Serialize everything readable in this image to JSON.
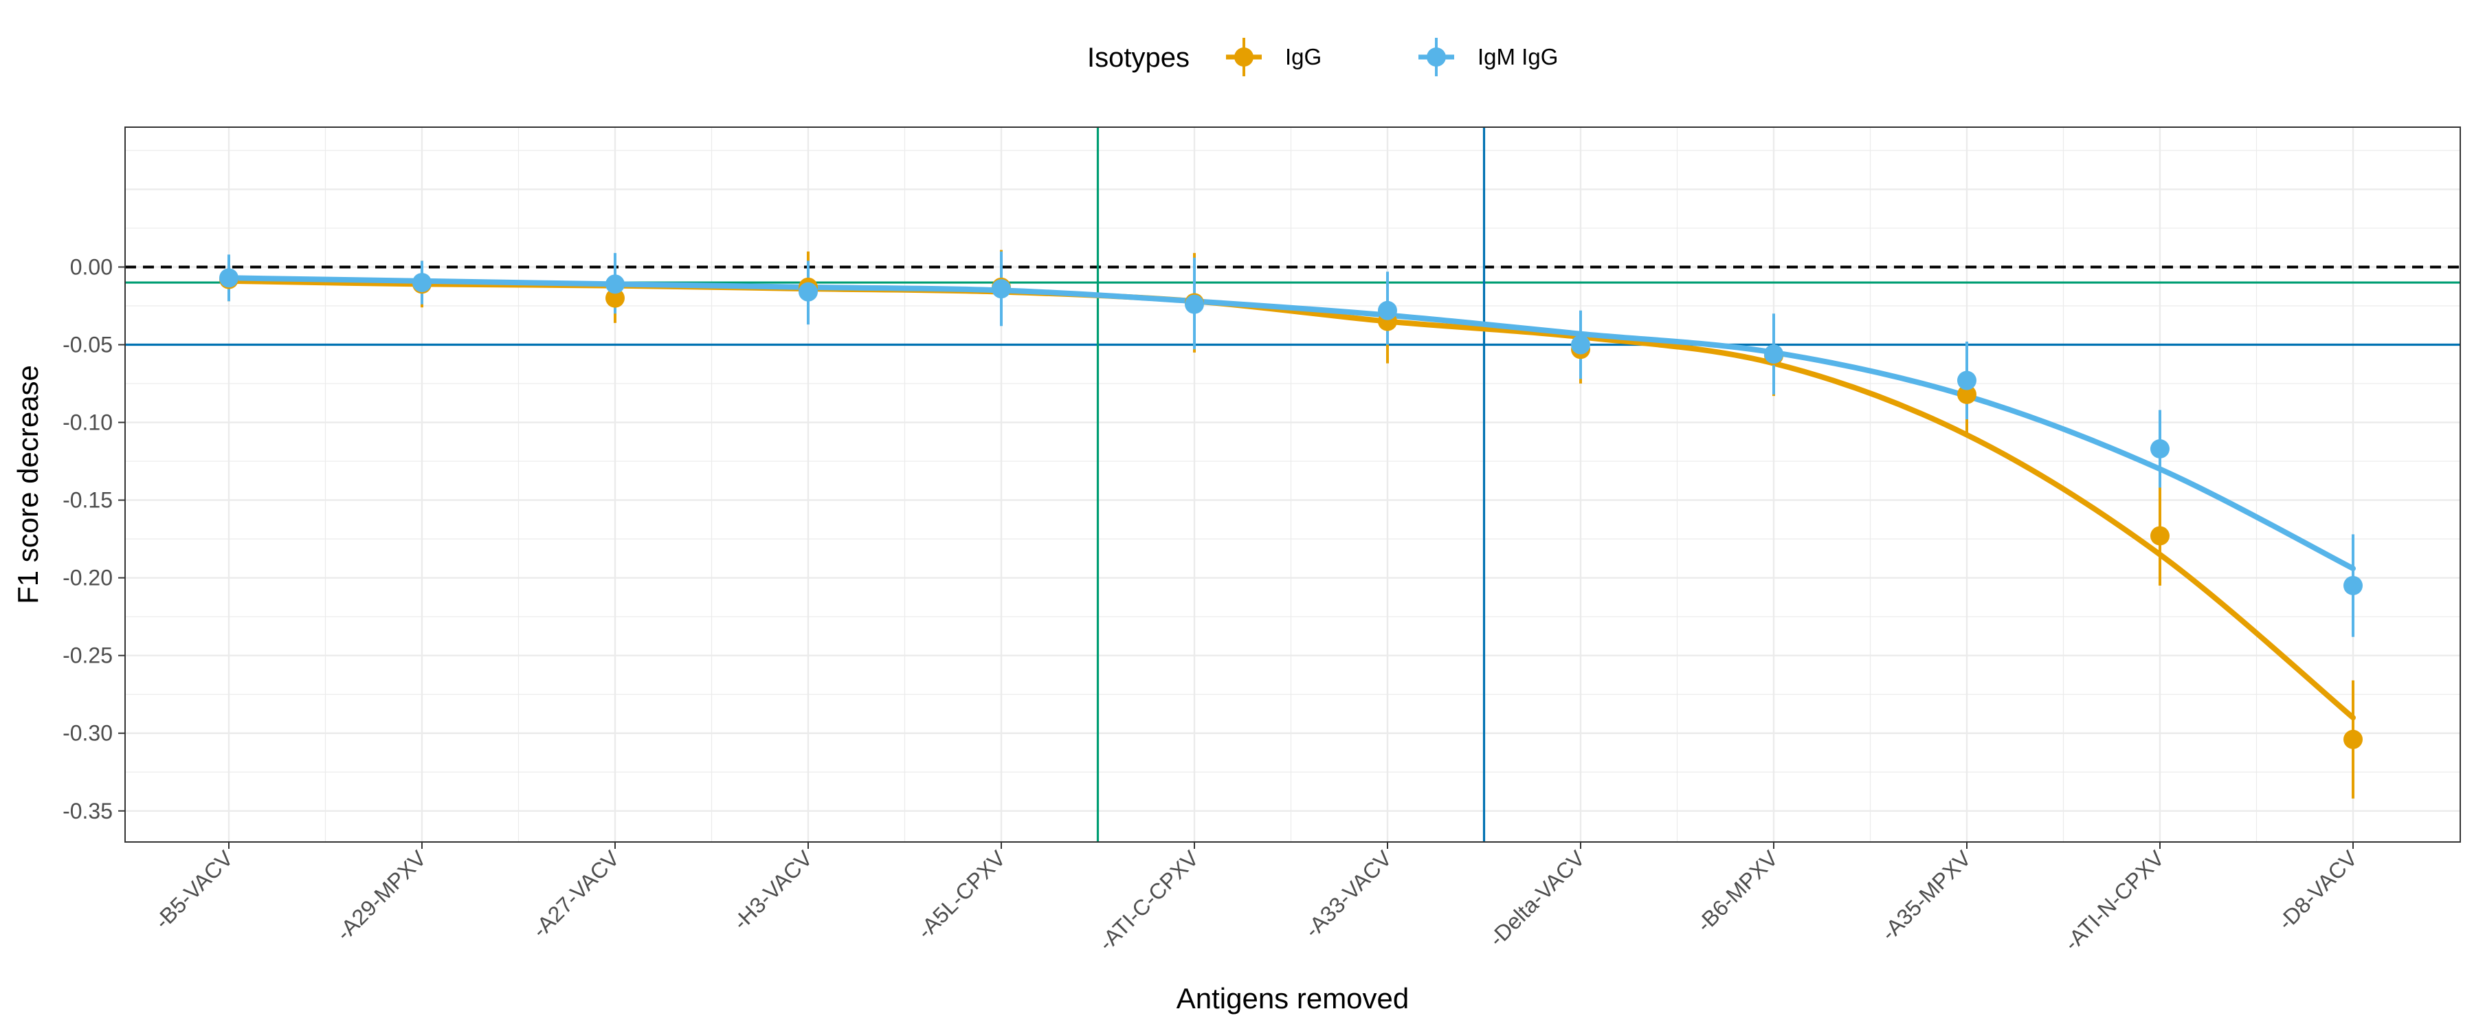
{
  "chart_data": {
    "type": "scatter",
    "xlabel": "Antigens removed",
    "ylabel": "F1 score decrease",
    "categories": [
      "-B5-VACV",
      "-A29-MPXV",
      "-A27-VACV",
      "-H3-VACV",
      "-A5L-CPXV",
      "-ATI-C-CPXV",
      "-A33-VACV",
      "-Delta-VACV",
      "-B6-MPXV",
      "-A35-MPXV",
      "-ATI-N-CPXV",
      "-D8-VACV"
    ],
    "ylim": [
      -0.37,
      0.09
    ],
    "yticks": [
      0.0,
      -0.05,
      -0.1,
      -0.15,
      -0.2,
      -0.25,
      -0.3,
      -0.35
    ],
    "ytick_labels": [
      "0.00",
      "-0.05",
      "-0.10",
      "-0.15",
      "-0.20",
      "-0.25",
      "-0.30",
      "-0.35"
    ],
    "grid": true,
    "legend": {
      "title": "Isotypes",
      "position": "top"
    },
    "series": [
      {
        "name": "IgG",
        "color": "#E69F00",
        "values": [
          -0.008,
          -0.011,
          -0.02,
          -0.013,
          -0.013,
          -0.023,
          -0.035,
          -0.053,
          -0.057,
          -0.082,
          -0.173,
          -0.304
        ],
        "error_low": [
          -0.022,
          -0.026,
          -0.036,
          -0.033,
          -0.037,
          -0.055,
          -0.062,
          -0.075,
          -0.083,
          -0.108,
          -0.205,
          -0.342
        ],
        "error_high": [
          0.006,
          0.004,
          -0.003,
          0.01,
          0.011,
          0.009,
          -0.008,
          -0.031,
          -0.031,
          -0.056,
          -0.141,
          -0.266
        ],
        "smooth": [
          -0.009,
          -0.011,
          -0.012,
          -0.014,
          -0.016,
          -0.022,
          -0.035,
          -0.045,
          -0.062,
          -0.108,
          -0.185,
          -0.29
        ]
      },
      {
        "name": "IgM IgG",
        "color": "#56B4E9",
        "values": [
          -0.007,
          -0.01,
          -0.011,
          -0.016,
          -0.014,
          -0.024,
          -0.028,
          -0.05,
          -0.056,
          -0.073,
          -0.117,
          -0.205
        ],
        "error_low": [
          -0.022,
          -0.024,
          -0.03,
          -0.037,
          -0.038,
          -0.053,
          -0.05,
          -0.072,
          -0.082,
          -0.098,
          -0.142,
          -0.238
        ],
        "error_high": [
          0.008,
          0.004,
          0.009,
          0.004,
          0.01,
          0.006,
          -0.003,
          -0.028,
          -0.03,
          -0.048,
          -0.092,
          -0.172
        ],
        "smooth": [
          -0.007,
          -0.009,
          -0.011,
          -0.013,
          -0.015,
          -0.022,
          -0.031,
          -0.043,
          -0.055,
          -0.083,
          -0.13,
          -0.194
        ]
      }
    ],
    "reference_lines": {
      "horizontal": [
        {
          "y": 0.0,
          "color": "#000000",
          "style": "dashed"
        },
        {
          "y": -0.01,
          "color": "#009E73",
          "style": "solid"
        },
        {
          "y": -0.05,
          "color": "#0072B2",
          "style": "solid"
        }
      ],
      "vertical": [
        {
          "after_index": 4,
          "color": "#009E73",
          "style": "solid"
        },
        {
          "after_index": 6,
          "color": "#0072B2",
          "style": "solid"
        }
      ]
    }
  }
}
